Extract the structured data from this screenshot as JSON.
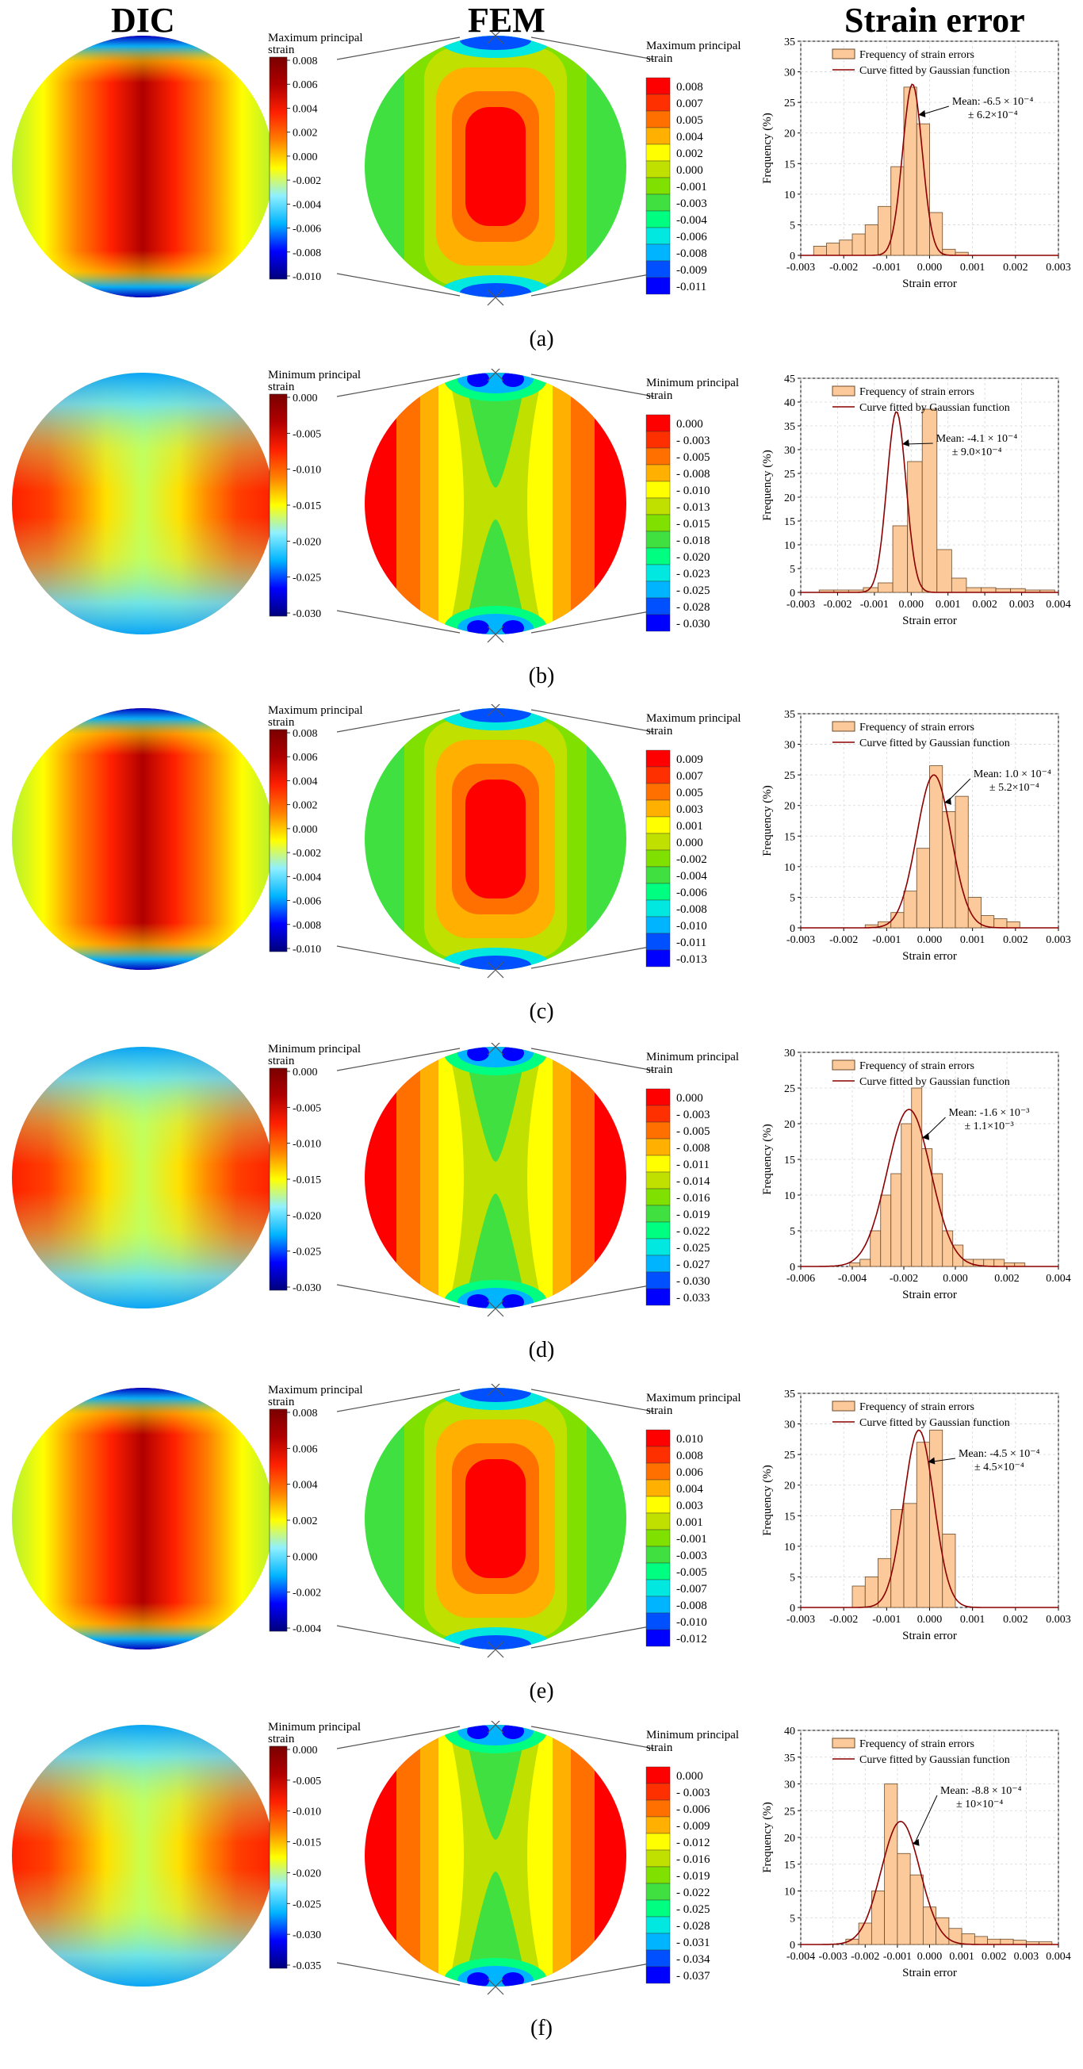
{
  "headers": {
    "dic": "DIC",
    "fem": "FEM",
    "error": "Strain error"
  },
  "colors": {
    "dic": [
      "#00007a",
      "#0000ff",
      "#00b4ff",
      "#8ff0ff",
      "#ffff00",
      "#ff8000",
      "#ff2000",
      "#b00000",
      "#7a0000"
    ],
    "fem": [
      "#0000ff",
      "#0050ff",
      "#00b4ff",
      "#00e8e0",
      "#00ff80",
      "#40e040",
      "#80e000",
      "#c0e000",
      "#ffff00",
      "#ffb000",
      "#ff7000",
      "#ff3000",
      "#ff0000"
    ],
    "bar": "#fbc99a",
    "bar_stroke": "#6b4a2a",
    "curve": "#8b0000",
    "strut": "#555555"
  },
  "rows": [
    {
      "caption": "(a)",
      "kind": "max",
      "dic_legend": {
        "title": [
          "Maximum principal",
          "strain"
        ],
        "ticks": [
          "0.008",
          "0.006",
          "0.004",
          "0.002",
          "0.000",
          "-0.002",
          "-0.004",
          "-0.006",
          "-0.008",
          "-0.010"
        ]
      },
      "fem_legend": {
        "title": [
          "Maximum principal",
          "strain"
        ],
        "ticks": [
          "0.008",
          "0.007",
          "0.005",
          "0.004",
          "0.002",
          "0.000",
          "-0.001",
          "-0.003",
          "-0.004",
          "-0.006",
          "-0.008",
          "-0.009",
          "-0.011"
        ]
      },
      "chart_data": {
        "type": "bar",
        "title": "",
        "xlabel": "Strain error",
        "ylabel": "Frequency (%)",
        "xlim": [
          -0.003,
          0.003
        ],
        "ylim": [
          0,
          35
        ],
        "xticks": [
          "-0.003",
          "-0.002",
          "-0.001",
          "0.000",
          "0.001",
          "0.002",
          "0.003"
        ],
        "yticks": [
          "0",
          "5",
          "10",
          "15",
          "20",
          "25",
          "30",
          "35"
        ],
        "legend": [
          "Frequency of strain errors",
          "Curve fitted by Gaussian function"
        ],
        "annotation": [
          "Mean: -6.5 × 10⁻⁴",
          "± 6.2×10⁻⁴"
        ],
        "bins": [
          -0.0027,
          -0.0024,
          -0.0021,
          -0.0018,
          -0.0015,
          -0.0012,
          -0.0009,
          -0.0006,
          -0.0003,
          0.0,
          0.0003,
          0.0006
        ],
        "values": [
          1.5,
          2,
          2.5,
          3.5,
          5,
          8,
          14.5,
          27.5,
          21.5,
          7,
          1,
          0.5
        ],
        "bin_width": 0.0003,
        "gauss": {
          "mean": -0.0004,
          "sigma": 0.00023,
          "peak": 28
        }
      }
    },
    {
      "caption": "(b)",
      "kind": "min",
      "dic_legend": {
        "title": [
          "Minimum principal",
          "strain"
        ],
        "ticks": [
          "0.000",
          "-0.005",
          "-0.010",
          "-0.015",
          "-0.020",
          "-0.025",
          "-0.030"
        ]
      },
      "fem_legend": {
        "title": [
          "Minimum principal",
          "strain"
        ],
        "ticks": [
          "0.000",
          "- 0.003",
          "- 0.005",
          "- 0.008",
          "- 0.010",
          "- 0.013",
          "- 0.015",
          "- 0.018",
          "- 0.020",
          "- 0.023",
          "- 0.025",
          "- 0.028",
          "- 0.030"
        ]
      },
      "chart_data": {
        "type": "bar",
        "title": "",
        "xlabel": "Strain error",
        "ylabel": "Frequency (%)",
        "xlim": [
          -0.003,
          0.004
        ],
        "ylim": [
          0,
          45
        ],
        "xticks": [
          "-0.003",
          "-0.002",
          "-0.001",
          "0.000",
          "0.001",
          "0.002",
          "0.003",
          "0.004"
        ],
        "yticks": [
          "0",
          "5",
          "10",
          "15",
          "20",
          "25",
          "30",
          "35",
          "40",
          "45"
        ],
        "legend": [
          "Frequency of strain errors",
          "Curve fitted by Gaussian function"
        ],
        "annotation": [
          "Mean: -4.1 × 10⁻⁴",
          "± 9.0×10⁻⁴"
        ],
        "bins": [
          -0.0025,
          -0.0021,
          -0.0017,
          -0.0013,
          -0.0009,
          -0.0005,
          -0.0001,
          0.0003,
          0.0007,
          0.0011,
          0.0015,
          0.0019,
          0.0023,
          0.0027,
          0.0031,
          0.0035
        ],
        "values": [
          0.5,
          0.5,
          0.5,
          1,
          2,
          14,
          27.5,
          38.5,
          9,
          3,
          1,
          1,
          0.8,
          0.8,
          0.5,
          0.5
        ],
        "bin_width": 0.0004,
        "gauss": {
          "mean": -0.0004,
          "sigma": 0.00026,
          "peak": 38
        }
      }
    },
    {
      "caption": "(c)",
      "kind": "max",
      "dic_legend": {
        "title": [
          "Maximum principal",
          "strain"
        ],
        "ticks": [
          "0.008",
          "0.006",
          "0.004",
          "0.002",
          "0.000",
          "-0.002",
          "-0.004",
          "-0.006",
          "-0.008",
          "-0.010"
        ]
      },
      "fem_legend": {
        "title": [
          "Maximum principal",
          "strain"
        ],
        "ticks": [
          "0.009",
          "0.007",
          "0.005",
          "0.003",
          "0.001",
          "0.000",
          "-0.002",
          "-0.004",
          "-0.006",
          "-0.008",
          "-0.010",
          "-0.011",
          "-0.013"
        ]
      },
      "chart_data": {
        "type": "bar",
        "title": "",
        "xlabel": "Strain error",
        "ylabel": "Frequency (%)",
        "xlim": [
          -0.003,
          0.003
        ],
        "ylim": [
          0,
          35
        ],
        "xticks": [
          "-0.003",
          "-0.002",
          "-0.001",
          "0.000",
          "0.001",
          "0.002",
          "0.003"
        ],
        "yticks": [
          "0",
          "5",
          "10",
          "15",
          "20",
          "25",
          "30",
          "35"
        ],
        "legend": [
          "Frequency of strain errors",
          "Curve fitted by Gaussian function"
        ],
        "annotation": [
          "Mean: 1.0 × 10⁻⁴",
          "± 5.2×10⁻⁴"
        ],
        "bins": [
          -0.0015,
          -0.0012,
          -0.0009,
          -0.0006,
          -0.0003,
          0.0,
          0.0003,
          0.0006,
          0.0009,
          0.0012,
          0.0015,
          0.0018
        ],
        "values": [
          0.5,
          1,
          2.5,
          6,
          13,
          26.5,
          19,
          21.5,
          5,
          2,
          1.5,
          1
        ],
        "bin_width": 0.0003,
        "gauss": {
          "mean": 0.0001,
          "sigma": 0.0004,
          "peak": 25
        }
      }
    },
    {
      "caption": "(d)",
      "kind": "min",
      "dic_legend": {
        "title": [
          "Minimum principal",
          "strain"
        ],
        "ticks": [
          "0.000",
          "-0.005",
          "-0.010",
          "-0.015",
          "-0.020",
          "-0.025",
          "-0.030"
        ]
      },
      "fem_legend": {
        "title": [
          "Minimum principal",
          "strain"
        ],
        "ticks": [
          "0.000",
          "- 0.003",
          "- 0.005",
          "- 0.008",
          "- 0.011",
          "- 0.014",
          "- 0.016",
          "- 0.019",
          "- 0.022",
          "- 0.025",
          "- 0.027",
          "- 0.030",
          "- 0.033"
        ]
      },
      "chart_data": {
        "type": "bar",
        "title": "",
        "xlabel": "Strain error",
        "ylabel": "Frequency (%)",
        "xlim": [
          -0.006,
          0.004
        ],
        "ylim": [
          0,
          30
        ],
        "xticks": [
          "-0.006",
          "-0.004",
          "-0.002",
          "0.000",
          "0.002",
          "0.004"
        ],
        "yticks": [
          "0",
          "5",
          "10",
          "15",
          "20",
          "25",
          "30"
        ],
        "legend": [
          "Frequency of strain errors",
          "Curve fitted by Gaussian function"
        ],
        "annotation": [
          "Mean: -1.6 × 10⁻³",
          "± 1.1×10⁻³"
        ],
        "bins": [
          -0.0041,
          -0.0037,
          -0.0033,
          -0.0029,
          -0.0025,
          -0.0021,
          -0.0017,
          -0.0013,
          -0.0009,
          -0.0005,
          -0.0001,
          0.0003,
          0.0007,
          0.0011,
          0.0015,
          0.0019,
          0.0023
        ],
        "values": [
          0.5,
          1,
          5,
          10,
          13,
          20,
          25,
          16.5,
          13,
          5,
          3,
          1,
          1,
          1,
          1,
          0.5,
          0.5
        ],
        "bin_width": 0.0004,
        "gauss": {
          "mean": -0.0018,
          "sigma": 0.00085,
          "peak": 22
        }
      }
    },
    {
      "caption": "(e)",
      "kind": "max",
      "dic_legend": {
        "title": [
          "Maximum principal",
          "strain"
        ],
        "ticks": [
          "0.008",
          "0.006",
          "0.004",
          "0.002",
          "0.000",
          "-0.002",
          "-0.004"
        ]
      },
      "fem_legend": {
        "title": [
          "Maximum principal",
          "strain"
        ],
        "ticks": [
          "0.010",
          "0.008",
          "0.006",
          "0.004",
          "0.003",
          "0.001",
          "-0.001",
          "-0.003",
          "-0.005",
          "-0.007",
          "-0.008",
          "-0.010",
          "-0.012"
        ]
      },
      "chart_data": {
        "type": "bar",
        "title": "",
        "xlabel": "Strain error",
        "ylabel": "Frequency (%)",
        "xlim": [
          -0.003,
          0.003
        ],
        "ylim": [
          0,
          35
        ],
        "xticks": [
          "-0.003",
          "-0.002",
          "-0.001",
          "0.000",
          "0.001",
          "0.002",
          "0.003"
        ],
        "yticks": [
          "0",
          "5",
          "10",
          "15",
          "20",
          "25",
          "30",
          "35"
        ],
        "legend": [
          "Frequency of strain errors",
          "Curve fitted by Gaussian function"
        ],
        "annotation": [
          "Mean: -4.5 × 10⁻⁴",
          "± 4.5×10⁻⁴"
        ],
        "bins": [
          -0.0018,
          -0.0015,
          -0.0012,
          -0.0009,
          -0.0006,
          -0.0003,
          0.0,
          0.0003
        ],
        "values": [
          3.5,
          5,
          8,
          16,
          17,
          27,
          29,
          12
        ],
        "bin_width": 0.0003,
        "gauss": {
          "mean": -0.00025,
          "sigma": 0.00035,
          "peak": 29
        }
      }
    },
    {
      "caption": "(f)",
      "kind": "min",
      "dic_legend": {
        "title": [
          "Minimum principal",
          "strain"
        ],
        "ticks": [
          "0.000",
          "-0.005",
          "-0.010",
          "-0.015",
          "-0.020",
          "-0.025",
          "-0.030",
          "-0.035"
        ]
      },
      "fem_legend": {
        "title": [
          "Minimum principal",
          "strain"
        ],
        "ticks": [
          "0.000",
          "- 0.003",
          "- 0.006",
          "- 0.009",
          "- 0.012",
          "- 0.016",
          "- 0.019",
          "- 0.022",
          "- 0.025",
          "- 0.028",
          "- 0.031",
          "- 0.034",
          "- 0.037"
        ]
      },
      "chart_data": {
        "type": "bar",
        "title": "",
        "xlabel": "Strain error",
        "ylabel": "Frequency (%)",
        "xlim": [
          -0.004,
          0.004
        ],
        "ylim": [
          0,
          40
        ],
        "xticks": [
          "-0.004",
          "-0.003",
          "-0.002",
          "-0.001",
          "0.000",
          "0.001",
          "0.002",
          "0.003",
          "0.004"
        ],
        "yticks": [
          "0",
          "5",
          "10",
          "15",
          "20",
          "25",
          "30",
          "35",
          "40"
        ],
        "legend": [
          "Frequency of strain errors",
          "Curve fitted by Gaussian function"
        ],
        "annotation": [
          "Mean: -8.8 × 10⁻⁴",
          "± 10×10⁻⁴"
        ],
        "bins": [
          -0.0026,
          -0.0022,
          -0.0018,
          -0.0014,
          -0.001,
          -0.0006,
          -0.0002,
          0.0002,
          0.0006,
          0.001,
          0.0014,
          0.0018,
          0.0022,
          0.0026,
          0.003,
          0.0034
        ],
        "values": [
          1,
          4,
          10,
          30,
          17,
          13,
          7,
          5,
          3,
          2,
          1.5,
          1,
          1,
          0.8,
          0.5,
          0.5
        ],
        "bin_width": 0.0004,
        "gauss": {
          "mean": -0.0009,
          "sigma": 0.0006,
          "peak": 23
        }
      }
    }
  ]
}
